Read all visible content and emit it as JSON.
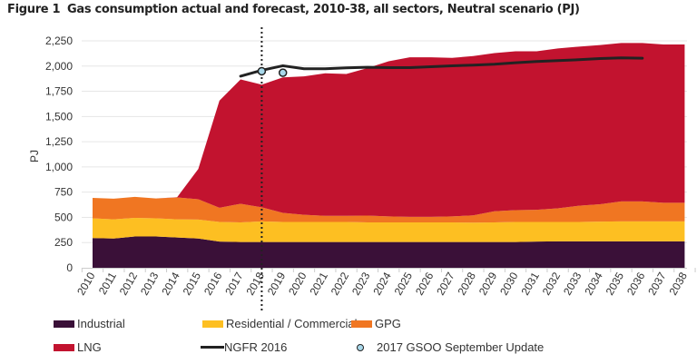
{
  "figure_label": "Figure 1",
  "chart_data": {
    "type": "area",
    "stacked": true,
    "title": "Gas consumption actual and forecast, 2010-38, all sectors, Neutral scenario (PJ)",
    "xlabel": "",
    "ylabel": "PJ",
    "ylim": [
      0,
      2250
    ],
    "yticks": [
      "0",
      "250",
      "500",
      "750",
      "1,000",
      "1,250",
      "1,500",
      "1,750",
      "2,000",
      "2,250"
    ],
    "grid": true,
    "legend_position": "bottom",
    "categories": [
      "2010",
      "2011",
      "2012",
      "2013",
      "2014",
      "2015",
      "2016",
      "2017",
      "2018",
      "2019",
      "2020",
      "2021",
      "2022",
      "2023",
      "2024",
      "2025",
      "2026",
      "2027",
      "2028",
      "2029",
      "2030",
      "2031",
      "2032",
      "2033",
      "2034",
      "2035",
      "2036",
      "2037",
      "2038"
    ],
    "series": [
      {
        "name": "Industrial",
        "color": "#3a1038",
        "values": [
          295,
          290,
          310,
          310,
          300,
          290,
          260,
          255,
          255,
          255,
          255,
          255,
          255,
          255,
          255,
          255,
          255,
          255,
          255,
          255,
          255,
          260,
          262,
          262,
          262,
          262,
          262,
          262,
          262
        ]
      },
      {
        "name": "Residential / Commercial",
        "color": "#fdbf22",
        "values": [
          196,
          190,
          185,
          180,
          180,
          188,
          195,
          195,
          205,
          200,
          200,
          200,
          200,
          195,
          195,
          195,
          195,
          195,
          193,
          195,
          200,
          195,
          193,
          193,
          196,
          198,
          198,
          198,
          198
        ]
      },
      {
        "name": "GPG",
        "color": "#f07622",
        "values": [
          202,
          205,
          208,
          197,
          218,
          202,
          140,
          185,
          140,
          90,
          70,
          60,
          60,
          68,
          60,
          55,
          55,
          60,
          72,
          110,
          117,
          120,
          135,
          160,
          172,
          198,
          198,
          185,
          185
        ]
      },
      {
        "name": "LNG",
        "color": "#c2132f",
        "values": [
          0,
          0,
          0,
          0,
          2,
          300,
          1062,
          1232,
          1216,
          1343,
          1373,
          1413,
          1407,
          1462,
          1538,
          1582,
          1582,
          1571,
          1579,
          1569,
          1575,
          1572,
          1585,
          1578,
          1578,
          1571,
          1571,
          1569,
          1569
        ]
      }
    ],
    "lines": [
      {
        "name": "NGFR 2016",
        "color": "#222222",
        "x": [
          "2017",
          "2018",
          "2019",
          "2020",
          "2021",
          "2022",
          "2023",
          "2024",
          "2025",
          "2026",
          "2027",
          "2028",
          "2029",
          "2030",
          "2031",
          "2032",
          "2033",
          "2034",
          "2035",
          "2036"
        ],
        "values": [
          1900,
          1958,
          2003,
          1973,
          1973,
          1982,
          1988,
          1985,
          1985,
          1994,
          2003,
          2009,
          2018,
          2033,
          2045,
          2054,
          2063,
          2075,
          2081,
          2078
        ]
      }
    ],
    "points": [
      {
        "name": "2017 GSOO September Update",
        "color": "#a8d8ea",
        "x": [
          "2018",
          "2019"
        ],
        "values": [
          1949,
          1934
        ]
      }
    ],
    "vertical_marker": {
      "x": "2018",
      "style": "dotted"
    }
  }
}
